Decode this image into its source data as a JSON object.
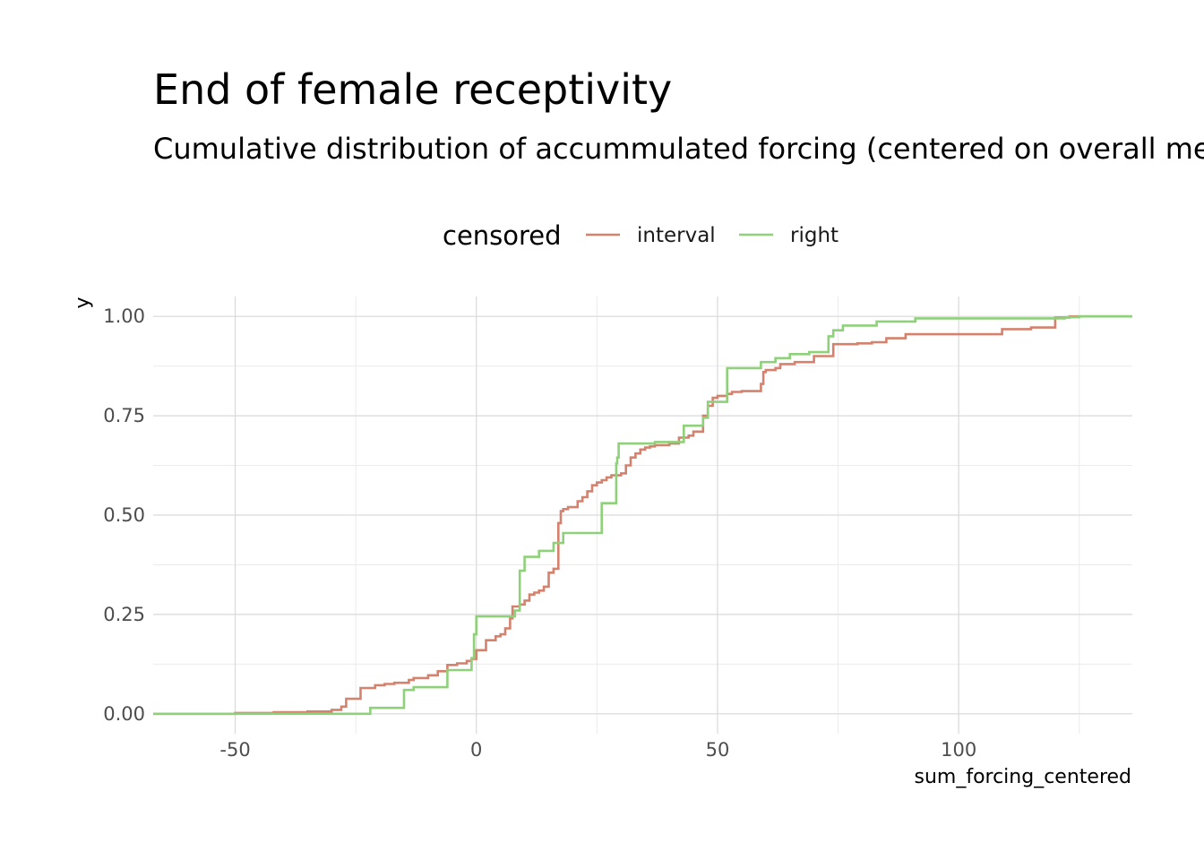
{
  "chart_data": {
    "type": "line",
    "step": true,
    "title": "End of female receptivity",
    "subtitle": "Cumulative distribution of accummulated forcing (centered on overall mean)",
    "xlabel": "sum_forcing_centered",
    "ylabel": "y",
    "xlim": [
      -67,
      136
    ],
    "ylim": [
      -0.05,
      1.05
    ],
    "x_ticks": [
      -50,
      0,
      50,
      100
    ],
    "x_tick_labels": [
      "-50",
      "0",
      "50",
      "100"
    ],
    "y_ticks": [
      0,
      0.25,
      0.5,
      0.75,
      1
    ],
    "y_tick_labels": [
      "0.00",
      "0.25",
      "0.50",
      "0.75",
      "1.00"
    ],
    "grid": true,
    "legend": {
      "title": "censored",
      "position": "top"
    },
    "series": [
      {
        "name": "interval",
        "color": "#d4826e",
        "points": [
          [
            -67,
            0
          ],
          [
            -50,
            0.002
          ],
          [
            -42,
            0.004
          ],
          [
            -35,
            0.006
          ],
          [
            -30,
            0.01
          ],
          [
            -28,
            0.018
          ],
          [
            -27,
            0.038
          ],
          [
            -24,
            0.065
          ],
          [
            -21,
            0.072
          ],
          [
            -19,
            0.075
          ],
          [
            -17,
            0.078
          ],
          [
            -14,
            0.085
          ],
          [
            -13,
            0.09
          ],
          [
            -10,
            0.097
          ],
          [
            -8,
            0.107
          ],
          [
            -6,
            0.123
          ],
          [
            -4,
            0.127
          ],
          [
            -2,
            0.133
          ],
          [
            -1,
            0.138
          ],
          [
            0,
            0.16
          ],
          [
            2,
            0.185
          ],
          [
            4,
            0.195
          ],
          [
            5,
            0.2
          ],
          [
            6,
            0.215
          ],
          [
            7,
            0.24
          ],
          [
            7.5,
            0.27
          ],
          [
            9,
            0.275
          ],
          [
            10,
            0.285
          ],
          [
            11,
            0.3
          ],
          [
            12,
            0.305
          ],
          [
            13,
            0.31
          ],
          [
            14,
            0.32
          ],
          [
            15,
            0.355
          ],
          [
            16,
            0.365
          ],
          [
            17,
            0.48
          ],
          [
            17.5,
            0.51
          ],
          [
            18,
            0.515
          ],
          [
            19,
            0.52
          ],
          [
            21,
            0.535
          ],
          [
            22,
            0.545
          ],
          [
            23,
            0.56
          ],
          [
            24,
            0.575
          ],
          [
            25,
            0.582
          ],
          [
            26,
            0.588
          ],
          [
            27,
            0.595
          ],
          [
            28,
            0.6
          ],
          [
            30,
            0.605
          ],
          [
            31,
            0.625
          ],
          [
            32,
            0.645
          ],
          [
            33,
            0.655
          ],
          [
            34,
            0.665
          ],
          [
            35,
            0.67
          ],
          [
            36,
            0.673
          ],
          [
            37,
            0.676
          ],
          [
            40,
            0.68
          ],
          [
            42,
            0.695
          ],
          [
            44,
            0.7
          ],
          [
            45,
            0.71
          ],
          [
            47,
            0.75
          ],
          [
            48,
            0.775
          ],
          [
            49,
            0.795
          ],
          [
            50,
            0.8
          ],
          [
            52,
            0.805
          ],
          [
            53,
            0.81
          ],
          [
            55,
            0.812
          ],
          [
            59,
            0.83
          ],
          [
            59.5,
            0.86
          ],
          [
            60,
            0.865
          ],
          [
            62,
            0.87
          ],
          [
            63,
            0.88
          ],
          [
            66,
            0.885
          ],
          [
            70,
            0.9
          ],
          [
            74,
            0.93
          ],
          [
            79,
            0.932
          ],
          [
            82,
            0.935
          ],
          [
            85,
            0.945
          ],
          [
            89,
            0.955
          ],
          [
            109,
            0.968
          ],
          [
            115,
            0.972
          ],
          [
            120,
            0.997
          ],
          [
            123,
            1
          ],
          [
            136,
            1
          ]
        ]
      },
      {
        "name": "right",
        "color": "#8fd17a",
        "points": [
          [
            -67,
            0
          ],
          [
            -22,
            0.015
          ],
          [
            -15,
            0.06
          ],
          [
            -13,
            0.067
          ],
          [
            -6,
            0.11
          ],
          [
            -1,
            0.14
          ],
          [
            -0.5,
            0.2
          ],
          [
            0,
            0.245
          ],
          [
            8,
            0.26
          ],
          [
            9,
            0.36
          ],
          [
            10,
            0.395
          ],
          [
            13,
            0.41
          ],
          [
            16,
            0.43
          ],
          [
            18,
            0.455
          ],
          [
            26,
            0.53
          ],
          [
            29,
            0.63
          ],
          [
            29.2,
            0.645
          ],
          [
            29.5,
            0.68
          ],
          [
            37,
            0.684
          ],
          [
            43,
            0.725
          ],
          [
            47,
            0.745
          ],
          [
            48,
            0.785
          ],
          [
            52,
            0.87
          ],
          [
            59,
            0.885
          ],
          [
            62,
            0.895
          ],
          [
            65,
            0.905
          ],
          [
            69,
            0.91
          ],
          [
            73,
            0.95
          ],
          [
            74,
            0.965
          ],
          [
            76,
            0.977
          ],
          [
            83,
            0.987
          ],
          [
            91,
            0.995
          ],
          [
            122,
            0.998
          ],
          [
            125,
            1
          ],
          [
            136,
            1
          ]
        ]
      }
    ]
  }
}
